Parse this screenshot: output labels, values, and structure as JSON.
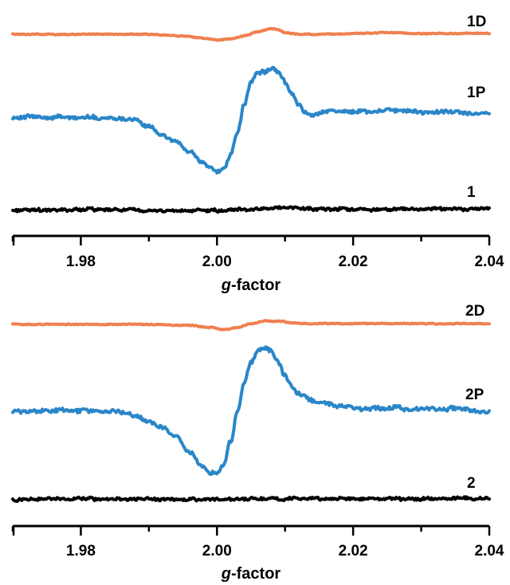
{
  "chart_data": [
    {
      "type": "line",
      "panel": "top",
      "xlabel": {
        "italic": "g",
        "rest": "-factor"
      },
      "xlim": [
        1.97,
        2.04
      ],
      "xticks": [
        "1.98",
        "2.00",
        "2.02",
        "2.04"
      ],
      "xtick_values": [
        1.98,
        2.0,
        2.02,
        2.04
      ],
      "yaxis": "none (stacked traces, arbitrary intensity)",
      "grid": false,
      "series": [
        {
          "name": "1D",
          "color": "#f08050",
          "x": [
            1.97,
            1.98,
            1.99,
            1.995,
            1.998,
            2.0,
            2.002,
            2.004,
            2.006,
            2.008,
            2.009,
            2.01,
            2.012,
            2.015,
            2.02,
            2.025,
            2.03,
            2.035,
            2.04
          ],
          "y": [
            0,
            0,
            0,
            -0.1,
            -0.25,
            -0.35,
            -0.3,
            -0.1,
            0.15,
            0.35,
            0.3,
            0.1,
            0,
            0,
            0.05,
            0.1,
            0.05,
            0.05,
            0.05
          ]
        },
        {
          "name": "1P",
          "color": "#2a86c8",
          "x": [
            1.97,
            1.98,
            1.986,
            1.988,
            1.99,
            1.992,
            1.994,
            1.996,
            1.998,
            1.999,
            2.0,
            2.001,
            2.002,
            2.003,
            2.004,
            2.005,
            2.006,
            2.007,
            2.008,
            2.009,
            2.01,
            2.011,
            2.012,
            2.013,
            2.014,
            2.016,
            2.02,
            2.025,
            2.03,
            2.035,
            2.04
          ],
          "y": [
            0,
            0,
            -0.02,
            -0.05,
            -0.15,
            -0.28,
            -0.38,
            -0.55,
            -0.72,
            -0.8,
            -0.85,
            -0.82,
            -0.6,
            -0.25,
            0.2,
            0.55,
            0.68,
            0.72,
            0.78,
            0.7,
            0.55,
            0.38,
            0.2,
            0.08,
            0.02,
            0.1,
            0.08,
            0.12,
            0.08,
            0.08,
            0.05
          ]
        },
        {
          "name": "1",
          "color": "#000000",
          "x": [
            1.97,
            1.98,
            1.99,
            2.0,
            2.005,
            2.008,
            2.01,
            2.015,
            2.02,
            2.025,
            2.03,
            2.035,
            2.04
          ],
          "y": [
            0,
            0.02,
            0,
            0,
            0.02,
            0.06,
            0.05,
            0.03,
            0.02,
            0.02,
            0.03,
            0.03,
            0.04
          ]
        }
      ]
    },
    {
      "type": "line",
      "panel": "bottom",
      "xlabel": {
        "italic": "g",
        "rest": "-factor"
      },
      "xlim": [
        1.97,
        2.04
      ],
      "xticks": [
        "1.98",
        "2.00",
        "2.02",
        "2.04"
      ],
      "xtick_values": [
        1.98,
        2.0,
        2.02,
        2.04
      ],
      "yaxis": "none (stacked traces, arbitrary intensity)",
      "grid": false,
      "series": [
        {
          "name": "2D",
          "color": "#f08050",
          "x": [
            1.97,
            1.99,
            1.996,
            1.999,
            2.001,
            2.003,
            2.005,
            2.007,
            2.009,
            2.012,
            2.02,
            2.03,
            2.04
          ],
          "y": [
            0,
            0,
            -0.05,
            -0.2,
            -0.32,
            -0.2,
            0.05,
            0.2,
            0.2,
            0.05,
            0.05,
            0.05,
            0.05
          ]
        },
        {
          "name": "2P",
          "color": "#2a86c8",
          "x": [
            1.97,
            1.98,
            1.986,
            1.988,
            1.99,
            1.992,
            1.994,
            1.996,
            1.998,
            1.999,
            2.0,
            2.001,
            2.002,
            2.003,
            2.004,
            2.005,
            2.006,
            2.007,
            2.008,
            2.009,
            2.01,
            2.011,
            2.012,
            2.014,
            2.016,
            2.02,
            2.025,
            2.03,
            2.035,
            2.04
          ],
          "y": [
            0,
            0.02,
            0,
            -0.05,
            -0.12,
            -0.22,
            -0.35,
            -0.55,
            -0.75,
            -0.85,
            -0.85,
            -0.75,
            -0.4,
            0.0,
            0.4,
            0.7,
            0.85,
            0.9,
            0.85,
            0.7,
            0.5,
            0.35,
            0.25,
            0.15,
            0.12,
            0.05,
            0.06,
            0.04,
            0.04,
            0.0
          ]
        },
        {
          "name": "2",
          "color": "#000000",
          "x": [
            1.97,
            1.98,
            1.99,
            2.0,
            2.005,
            2.008,
            2.01,
            2.02,
            2.03,
            2.04
          ],
          "y": [
            0,
            0.02,
            0.01,
            0,
            0.02,
            0.03,
            0.02,
            0.02,
            0.02,
            0.03
          ]
        }
      ]
    }
  ]
}
